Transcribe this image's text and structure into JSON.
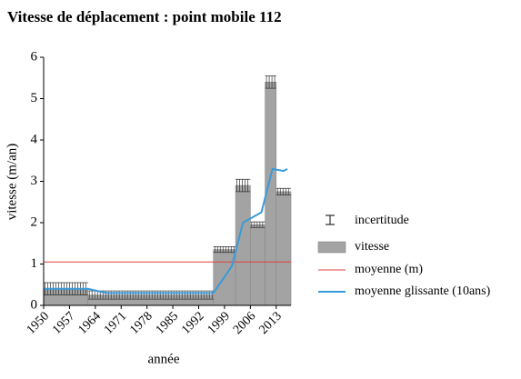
{
  "chart_data": {
    "type": "histogram",
    "title": "Vitesse de déplacement : point mobile 112",
    "xlabel": "année",
    "ylabel": "vitesse (m/an)",
    "bins": [
      1950,
      1962,
      1996,
      2002,
      2006,
      2010,
      2013,
      2017
    ],
    "values": [
      0.4,
      0.25,
      1.35,
      2.9,
      1.95,
      5.4,
      2.75
    ],
    "errors": [
      0.15,
      0.1,
      0.07,
      0.15,
      0.07,
      0.15,
      0.08
    ],
    "bar_name": "vitesse",
    "bar_color": "#a3a3a3",
    "error_name": "incertitude",
    "mean": {
      "name": "moyenne (m)",
      "value": 1.05,
      "color": "#e04040"
    },
    "moving_average": {
      "name": "moyenne glissante (10ans)",
      "color": "#3a9ad9",
      "x": [
        1950,
        1962,
        1967,
        1996,
        2001,
        2004,
        2009,
        2012,
        2015,
        2016
      ],
      "values": [
        0.4,
        0.4,
        0.3,
        0.3,
        0.95,
        2.0,
        2.25,
        3.3,
        3.25,
        3.3
      ]
    },
    "xlim": [
      1950,
      2017
    ],
    "xticks": [
      1950,
      1957,
      1964,
      1971,
      1978,
      1985,
      1992,
      1999,
      2006,
      2013
    ],
    "ylim": [
      0,
      6
    ],
    "yticks": [
      0,
      1,
      2,
      3,
      4,
      5,
      6
    ]
  }
}
